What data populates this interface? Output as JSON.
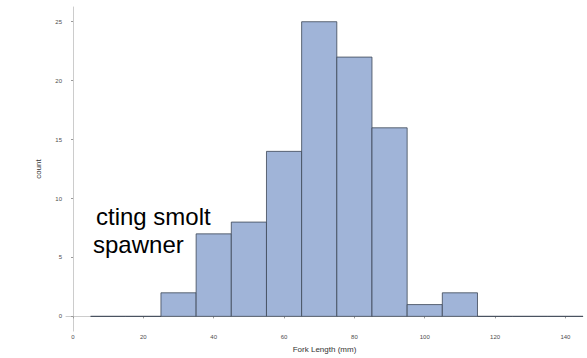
{
  "chart_data": {
    "type": "histogram",
    "x_label": "Fork Length (mm)",
    "y_label": "count",
    "bins": [
      5,
      15,
      25,
      35,
      45,
      55,
      65,
      75,
      85,
      95,
      105,
      115,
      125,
      135,
      145
    ],
    "values": [
      0,
      0,
      2,
      7,
      8,
      14,
      25,
      22,
      16,
      1,
      2,
      0,
      0,
      0
    ],
    "color": "#a0b4d8",
    "xlim": [
      -2,
      145
    ],
    "xticks": [
      0,
      20,
      40,
      60,
      80,
      100,
      120,
      140
    ],
    "ylim": [
      -1.25,
      26.25
    ],
    "yticks": [
      0,
      5,
      10,
      15,
      20,
      25
    ],
    "grid": false,
    "annotations": [
      "cting smolt",
      "spawner"
    ]
  }
}
